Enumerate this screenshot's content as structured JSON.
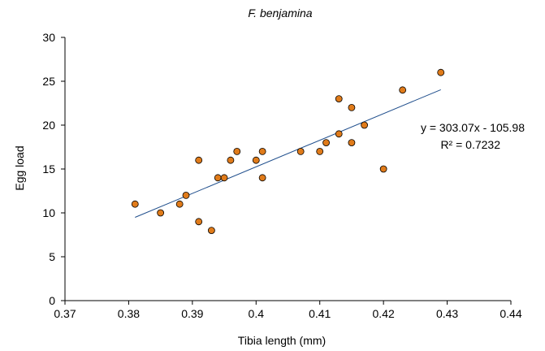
{
  "chart_data": {
    "type": "scatter",
    "title": "F. benjamina",
    "xlabel": "Tibia length (mm)",
    "ylabel": "Egg load",
    "xlim": [
      0.37,
      0.44
    ],
    "ylim": [
      0,
      30
    ],
    "xticks": [
      "0.37",
      "0.38",
      "0.39",
      "0.4",
      "0.41",
      "0.42",
      "0.43",
      "0.44"
    ],
    "yticks": [
      "0",
      "5",
      "10",
      "15",
      "20",
      "25",
      "30"
    ],
    "grid": false,
    "points": [
      {
        "x": 0.381,
        "y": 11
      },
      {
        "x": 0.385,
        "y": 10
      },
      {
        "x": 0.388,
        "y": 11
      },
      {
        "x": 0.389,
        "y": 12
      },
      {
        "x": 0.391,
        "y": 16
      },
      {
        "x": 0.391,
        "y": 9
      },
      {
        "x": 0.393,
        "y": 8
      },
      {
        "x": 0.394,
        "y": 14
      },
      {
        "x": 0.395,
        "y": 14
      },
      {
        "x": 0.396,
        "y": 16
      },
      {
        "x": 0.397,
        "y": 17
      },
      {
        "x": 0.4,
        "y": 16
      },
      {
        "x": 0.401,
        "y": 17
      },
      {
        "x": 0.401,
        "y": 14
      },
      {
        "x": 0.407,
        "y": 17
      },
      {
        "x": 0.41,
        "y": 17
      },
      {
        "x": 0.411,
        "y": 18
      },
      {
        "x": 0.413,
        "y": 23
      },
      {
        "x": 0.413,
        "y": 19
      },
      {
        "x": 0.415,
        "y": 22
      },
      {
        "x": 0.415,
        "y": 18
      },
      {
        "x": 0.417,
        "y": 20
      },
      {
        "x": 0.42,
        "y": 15
      },
      {
        "x": 0.423,
        "y": 24
      },
      {
        "x": 0.429,
        "y": 26
      }
    ],
    "trendline": {
      "type": "linear",
      "slope": 303.07,
      "intercept": -105.98,
      "x_range": [
        0.381,
        0.429
      ],
      "equation_label": "y = 303.07x - 105.98",
      "r2_label": "R² = 0.7232"
    },
    "colors": {
      "marker_fill": "#E07B1A",
      "marker_edge": "#000000",
      "trendline": "#1F4E8C",
      "axis": "#000000"
    }
  }
}
